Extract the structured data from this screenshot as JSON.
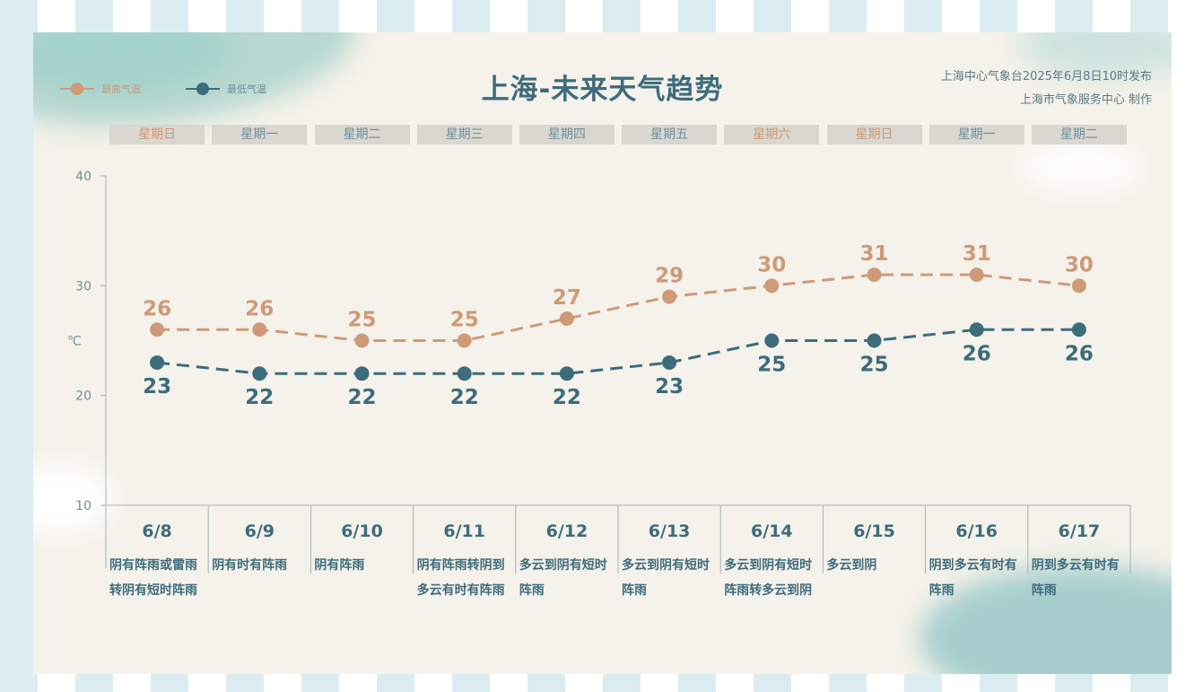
{
  "header": {
    "title": "上海-未来天气趋势",
    "publisher_line1": "上海中心气象台2025年6月8日10时发布",
    "publisher_line2": "上海市气象服务中心 制作"
  },
  "legend": {
    "high_label": "最高气温",
    "low_label": "最低气温"
  },
  "colors": {
    "high": "#cf9a78",
    "low": "#3d6c7b",
    "weekend_text": "#cf9873",
    "weekday_text": "#6d8f9a"
  },
  "weekdays": [
    "星期日",
    "星期一",
    "星期二",
    "星期三",
    "星期四",
    "星期五",
    "星期六",
    "星期日",
    "星期一",
    "星期二"
  ],
  "weekend_flags": [
    true,
    false,
    false,
    false,
    false,
    false,
    true,
    true,
    false,
    false
  ],
  "chart_data": {
    "type": "line",
    "categories": [
      "6/8",
      "6/9",
      "6/10",
      "6/11",
      "6/12",
      "6/13",
      "6/14",
      "6/15",
      "6/16",
      "6/17"
    ],
    "series": [
      {
        "name": "最高气温",
        "values": [
          26,
          26,
          25,
          25,
          27,
          29,
          30,
          31,
          31,
          30
        ]
      },
      {
        "name": "最低气温",
        "values": [
          23,
          22,
          22,
          22,
          22,
          23,
          25,
          25,
          26,
          26
        ]
      }
    ],
    "ylabel": "℃",
    "ylim": [
      10,
      40
    ],
    "yticks": [
      10,
      20,
      30,
      40
    ],
    "grid": false,
    "descriptions": [
      "阴有阵雨或雷雨转阴有短时阵雨",
      "阴有时有阵雨",
      "阴有阵雨",
      "阴有阵雨转阴到多云有时有阵雨",
      "多云到阴有短时阵雨",
      "多云到阴有短时阵雨",
      "多云到阴有短时阵雨转多云到阴",
      "多云到阴",
      "阴到多云有时有阵雨",
      "阴到多云有时有阵雨"
    ]
  }
}
